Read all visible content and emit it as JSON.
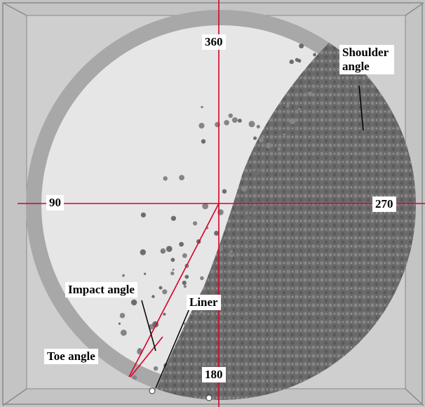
{
  "axes": {
    "top": "360",
    "left": "90",
    "right": "270",
    "bottom": "180"
  },
  "annotations": {
    "shoulder": "Shoulder angle",
    "impact": "Impact angle",
    "liner": "Liner",
    "toe": "Toe angle"
  }
}
